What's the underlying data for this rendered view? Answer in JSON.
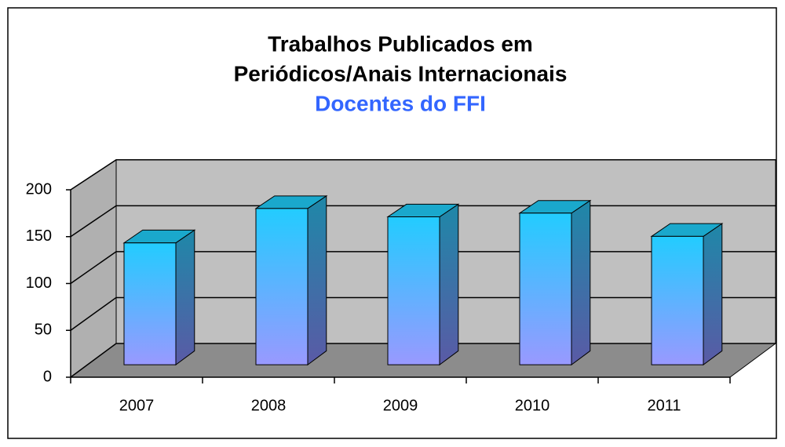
{
  "chart_data": {
    "type": "bar3d",
    "title": "Trabalhos Publicados em",
    "title_line2": "Periódicos/Anais Internacionais",
    "subtitle": "Docentes do FFI",
    "categories": [
      "2007",
      "2008",
      "2009",
      "2010",
      "2011"
    ],
    "values": [
      131,
      168,
      159,
      163,
      138
    ],
    "color": "#22ccff",
    "ylim": [
      0,
      200
    ],
    "yticks": [
      0,
      50,
      100,
      150,
      200
    ],
    "grid": true
  }
}
